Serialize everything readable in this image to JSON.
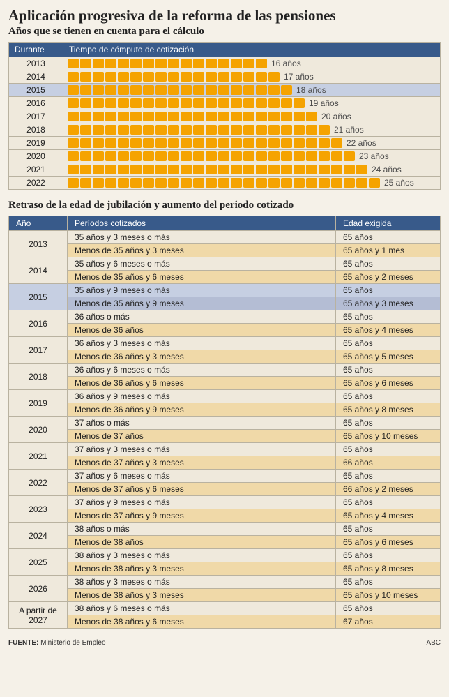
{
  "title": "Aplicación progresiva de la reforma de las pensiones",
  "section1": {
    "subtitle": "Años que se tienen en cuenta para el cálculo",
    "col_year": "Durante",
    "col_bar": "Tiempo de cómputo de cotización",
    "block_color": "#f5a300",
    "highlight_year": "2015",
    "rows": [
      {
        "year": "2013",
        "count": 16,
        "label": "16  años"
      },
      {
        "year": "2014",
        "count": 17,
        "label": "17 años"
      },
      {
        "year": "2015",
        "count": 18,
        "label": "18 años"
      },
      {
        "year": "2016",
        "count": 19,
        "label": "19 años"
      },
      {
        "year": "2017",
        "count": 20,
        "label": "20 años"
      },
      {
        "year": "2018",
        "count": 21,
        "label": "21 años"
      },
      {
        "year": "2019",
        "count": 22,
        "label": "22 años"
      },
      {
        "year": "2020",
        "count": 23,
        "label": "23 años"
      },
      {
        "year": "2021",
        "count": 24,
        "label": "24 años"
      },
      {
        "year": "2022",
        "count": 25,
        "label": "25 años"
      }
    ]
  },
  "section2": {
    "subtitle": "Retraso de la edad de jubilación y aumento del periodo cotizado",
    "col_year": "Año",
    "col_period": "Períodos cotizados",
    "col_age": "Edad exigida",
    "highlight_year": "2015",
    "colors": {
      "header_bg": "#385a8a",
      "row_a": "#efe9dc",
      "row_b": "#f0d9a8",
      "highlight": "#c6cfe2"
    },
    "rows": [
      {
        "year": "2013",
        "a_period": "35 años y 3 meses o más",
        "a_age": "65 años",
        "b_period": "Menos de 35 años y 3 meses",
        "b_age": "65 años y 1 mes"
      },
      {
        "year": "2014",
        "a_period": "35 años y 6 meses o más",
        "a_age": "65 años",
        "b_period": "Menos de 35 años y 6 meses",
        "b_age": "65 años y 2 meses"
      },
      {
        "year": "2015",
        "a_period": "35 años y 9 meses o más",
        "a_age": "65 años",
        "b_period": "Menos de 35 años y 9 meses",
        "b_age": "65 años y 3 meses"
      },
      {
        "year": "2016",
        "a_period": "36 años o más",
        "a_age": "65 años",
        "b_period": "Menos de 36 años",
        "b_age": "65 años y 4 meses"
      },
      {
        "year": "2017",
        "a_period": "36 años y 3 meses o más",
        "a_age": "65 años",
        "b_period": "Menos de 36 años y 3 meses",
        "b_age": "65 años y 5 meses"
      },
      {
        "year": "2018",
        "a_period": "36 años y 6 meses o más",
        "a_age": "65 años",
        "b_period": "Menos de 36 años y 6 meses",
        "b_age": "65 años y 6 meses"
      },
      {
        "year": "2019",
        "a_period": "36 años y 9 meses o más",
        "a_age": "65 años",
        "b_period": "Menos de 36 años y 9 meses",
        "b_age": "65 años y 8 meses"
      },
      {
        "year": "2020",
        "a_period": "37 años o más",
        "a_age": "65 años",
        "b_period": "Menos de 37 años",
        "b_age": "65 años y 10 meses"
      },
      {
        "year": "2021",
        "a_period": "37 años y 3 meses o más",
        "a_age": "65 años",
        "b_period": "Menos de 37 años y 3 meses",
        "b_age": "66 años"
      },
      {
        "year": "2022",
        "a_period": "37 años y 6 meses o más",
        "a_age": "65 años",
        "b_period": "Menos de 37 años y 6 meses",
        "b_age": "66 años y 2 meses"
      },
      {
        "year": "2023",
        "a_period": "37 años y 9 meses o más",
        "a_age": "65 años",
        "b_period": "Menos de 37 años y 9 meses",
        "b_age": "65 años y 4 meses"
      },
      {
        "year": "2024",
        "a_period": "38 años o más",
        "a_age": "65 años",
        "b_period": "Menos de 38 años",
        "b_age": "65 años y 6 meses"
      },
      {
        "year": "2025",
        "a_period": "38 años y 3 meses o más",
        "a_age": "65 años",
        "b_period": "Menos de 38 años y 3 meses",
        "b_age": "65 años y 8 meses"
      },
      {
        "year": "2026",
        "a_period": "38 años y 3 meses o más",
        "a_age": "65 años",
        "b_period": "Menos de 38 años y 3 meses",
        "b_age": "65 años y 10 meses"
      },
      {
        "year": "A partir de 2027",
        "a_period": "38 años y 6 meses o más",
        "a_age": "65 años",
        "b_period": "Menos de 38 años y 6 meses",
        "b_age": "67 años"
      }
    ]
  },
  "footer": {
    "source_label": "FUENTE:",
    "source_value": "Ministerio de Empleo",
    "brand": "ABC"
  }
}
